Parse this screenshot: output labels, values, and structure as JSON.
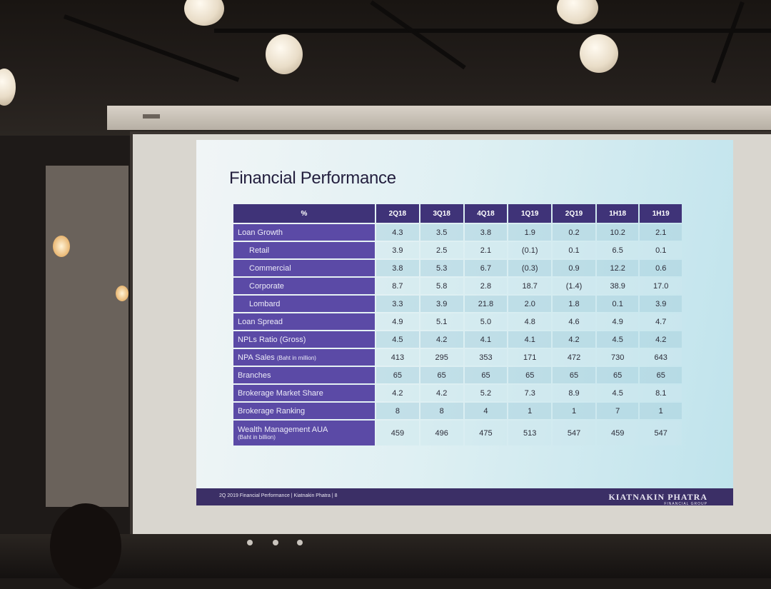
{
  "slide": {
    "title": "Financial Performance",
    "footer_text": "2Q 2019 Financial Performance | Kiatnakin Phatra | 8",
    "logo": "KIATNAKIN PHATRA",
    "logo_sub": "FINANCIAL GROUP"
  },
  "table": {
    "corner": "%",
    "columns": [
      "2Q18",
      "3Q18",
      "4Q18",
      "1Q19",
      "2Q19",
      "1H18",
      "1H19"
    ],
    "rows": [
      {
        "label": "Loan Growth",
        "values": [
          "4.3",
          "3.5",
          "3.8",
          "1.9",
          "0.2",
          "10.2",
          "2.1"
        ]
      },
      {
        "label": "Retail",
        "values": [
          "3.9",
          "2.5",
          "2.1",
          "(0.1)",
          "0.1",
          "6.5",
          "0.1"
        ]
      },
      {
        "label": "Commercial",
        "values": [
          "3.8",
          "5.3",
          "6.7",
          "(0.3)",
          "0.9",
          "12.2",
          "0.6"
        ]
      },
      {
        "label": "Corporate",
        "values": [
          "8.7",
          "5.8",
          "2.8",
          "18.7",
          "(1.4)",
          "38.9",
          "17.0"
        ]
      },
      {
        "label": "Lombard",
        "values": [
          "3.3",
          "3.9",
          "21.8",
          "2.0",
          "1.8",
          "0.1",
          "3.9"
        ]
      },
      {
        "label": "Loan Spread",
        "values": [
          "4.9",
          "5.1",
          "5.0",
          "4.8",
          "4.6",
          "4.9",
          "4.7"
        ]
      },
      {
        "label": "NPLs Ratio (Gross)",
        "values": [
          "4.5",
          "4.2",
          "4.1",
          "4.1",
          "4.2",
          "4.5",
          "4.2"
        ]
      },
      {
        "label": "NPA Sales",
        "label_small": "(Baht in million)",
        "values": [
          "413",
          "295",
          "353",
          "171",
          "472",
          "730",
          "643"
        ]
      },
      {
        "label": "Branches",
        "values": [
          "65",
          "65",
          "65",
          "65",
          "65",
          "65",
          "65"
        ]
      },
      {
        "label": "Brokerage Market Share",
        "values": [
          "4.2",
          "4.2",
          "5.2",
          "7.3",
          "8.9",
          "4.5",
          "8.1"
        ]
      },
      {
        "label": "Brokerage Ranking",
        "values": [
          "8",
          "8",
          "4",
          "1",
          "1",
          "7",
          "1"
        ]
      },
      {
        "label": "Wealth Management AUA",
        "label_small": "(Baht in billion)",
        "values": [
          "459",
          "496",
          "475",
          "513",
          "547",
          "459",
          "547"
        ]
      }
    ]
  }
}
